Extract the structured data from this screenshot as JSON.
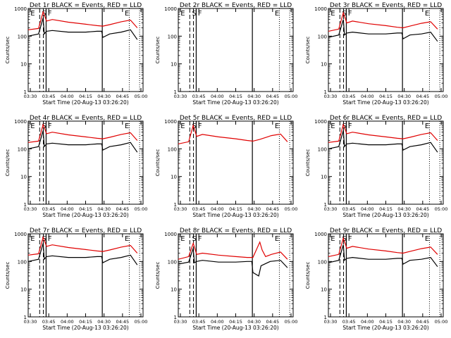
{
  "colors": {
    "events": "#000000",
    "lld": "#e00000",
    "axis": "#000000"
  },
  "common": {
    "ylabel": "Counts/sec",
    "xlabel": "Start Time (20-Aug-13 03:26:20)",
    "xticks": [
      "03:30",
      "03:45",
      "04:00",
      "04:15",
      "04:30",
      "04:45",
      "05:00"
    ],
    "yticks": [
      "1",
      "10",
      "100",
      "1000"
    ]
  },
  "chart_data": [
    {
      "type": "line",
      "title": "Det 1r BLACK = Events, RED = LLD",
      "letters": [
        "E",
        "S",
        "F",
        "E"
      ],
      "has_data": true,
      "variant": "normal",
      "xlim": [
        0,
        100
      ],
      "ylim": [
        1,
        1000
      ],
      "yscale": "log",
      "series": [
        {
          "name": "Events",
          "x": [
            0,
            9,
            13,
            14,
            16,
            21,
            35,
            50,
            60,
            64,
            65,
            71,
            81,
            89,
            95
          ],
          "y": [
            100,
            120,
            450,
            120,
            150,
            160,
            140,
            140,
            150,
            150,
            90,
            120,
            140,
            170,
            75
          ]
        },
        {
          "name": "LLD",
          "x": [
            0,
            9,
            13,
            16,
            21,
            35,
            50,
            60,
            65,
            71,
            81,
            89,
            95
          ],
          "y": [
            170,
            190,
            750,
            350,
            400,
            320,
            270,
            240,
            230,
            260,
            330,
            380,
            200
          ]
        }
      ]
    },
    {
      "type": "line",
      "title": "Det 2r BLACK = Events, RED = LLD",
      "letters": [
        "E",
        "S",
        "F",
        "E"
      ],
      "has_data": false,
      "variant": "empty",
      "xlim": [
        0,
        100
      ],
      "ylim": [
        1,
        1000
      ],
      "yscale": "log",
      "series": []
    },
    {
      "type": "line",
      "title": "Det 3r BLACK = Events, RED = LLD",
      "letters": [
        "E",
        "S",
        "F",
        "E"
      ],
      "has_data": true,
      "variant": "normal",
      "xlim": [
        0,
        100
      ],
      "ylim": [
        1,
        1000
      ],
      "yscale": "log",
      "series": [
        {
          "name": "Events",
          "x": [
            0,
            9,
            13,
            14,
            16,
            21,
            35,
            50,
            60,
            64,
            65,
            71,
            81,
            89,
            95
          ],
          "y": [
            90,
            110,
            400,
            110,
            130,
            140,
            120,
            120,
            130,
            130,
            80,
            110,
            120,
            140,
            65
          ]
        },
        {
          "name": "LLD",
          "x": [
            0,
            9,
            13,
            16,
            21,
            35,
            50,
            60,
            65,
            71,
            81,
            89,
            95
          ],
          "y": [
            150,
            180,
            700,
            300,
            350,
            280,
            240,
            210,
            200,
            230,
            290,
            330,
            180
          ]
        }
      ]
    },
    {
      "type": "line",
      "title": "Det 4r BLACK = Events, RED = LLD",
      "letters": [
        "E",
        "S",
        "F",
        "E"
      ],
      "has_data": true,
      "variant": "normal",
      "xlim": [
        0,
        100
      ],
      "ylim": [
        1,
        1000
      ],
      "yscale": "log",
      "series": [
        {
          "name": "Events",
          "x": [
            0,
            9,
            13,
            14,
            16,
            21,
            35,
            50,
            60,
            64,
            65,
            71,
            81,
            89,
            95
          ],
          "y": [
            100,
            120,
            450,
            120,
            150,
            160,
            140,
            140,
            150,
            150,
            90,
            120,
            140,
            170,
            75
          ]
        },
        {
          "name": "LLD",
          "x": [
            0,
            9,
            13,
            16,
            21,
            35,
            50,
            60,
            65,
            71,
            81,
            89,
            95
          ],
          "y": [
            170,
            190,
            750,
            350,
            400,
            320,
            270,
            240,
            230,
            260,
            330,
            380,
            200
          ]
        }
      ]
    },
    {
      "type": "line",
      "title": "Det 5r BLACK = Events, RED = LLD",
      "letters": [
        "E",
        "S",
        "F",
        "E"
      ],
      "has_data": true,
      "variant": "red-only",
      "xlim": [
        0,
        100
      ],
      "ylim": [
        1,
        1000
      ],
      "yscale": "log",
      "series": [
        {
          "name": "LLD",
          "x": [
            0,
            9,
            13,
            16,
            21,
            35,
            50,
            60,
            65,
            71,
            81,
            89,
            95
          ],
          "y": [
            150,
            180,
            700,
            280,
            330,
            270,
            230,
            200,
            190,
            220,
            300,
            340,
            180
          ]
        }
      ]
    },
    {
      "type": "line",
      "title": "Det 6r BLACK = Events, RED = LLD",
      "letters": [
        "E",
        "S",
        "F",
        "E"
      ],
      "has_data": true,
      "variant": "normal",
      "xlim": [
        0,
        100
      ],
      "ylim": [
        1,
        1000
      ],
      "yscale": "log",
      "series": [
        {
          "name": "Events",
          "x": [
            0,
            9,
            13,
            14,
            16,
            21,
            35,
            50,
            60,
            64,
            65,
            71,
            81,
            89,
            95
          ],
          "y": [
            100,
            120,
            450,
            120,
            150,
            160,
            140,
            140,
            150,
            150,
            90,
            120,
            140,
            170,
            75
          ]
        },
        {
          "name": "LLD",
          "x": [
            0,
            9,
            13,
            16,
            21,
            35,
            50,
            60,
            65,
            71,
            81,
            89,
            95
          ],
          "y": [
            170,
            190,
            750,
            350,
            400,
            320,
            270,
            240,
            230,
            260,
            330,
            380,
            200
          ]
        }
      ]
    },
    {
      "type": "line",
      "title": "Det 7r BLACK = Events, RED = LLD",
      "letters": [
        "E",
        "S",
        "F",
        "E"
      ],
      "has_data": true,
      "variant": "normal",
      "xlim": [
        0,
        100
      ],
      "ylim": [
        1,
        1000
      ],
      "yscale": "log",
      "series": [
        {
          "name": "Events",
          "x": [
            0,
            9,
            13,
            14,
            16,
            21,
            35,
            50,
            60,
            64,
            65,
            71,
            81,
            89,
            95
          ],
          "y": [
            100,
            120,
            450,
            120,
            150,
            160,
            140,
            140,
            150,
            150,
            90,
            120,
            140,
            170,
            75
          ]
        },
        {
          "name": "LLD",
          "x": [
            0,
            9,
            13,
            16,
            21,
            35,
            50,
            60,
            65,
            71,
            81,
            89,
            95
          ],
          "y": [
            170,
            190,
            750,
            350,
            400,
            320,
            270,
            240,
            230,
            260,
            330,
            380,
            200
          ]
        }
      ]
    },
    {
      "type": "line",
      "title": "Det 8r BLACK = Events, RED = LLD",
      "letters": [
        "E",
        "S",
        "F",
        "E"
      ],
      "has_data": true,
      "variant": "det8",
      "xlim": [
        0,
        100
      ],
      "ylim": [
        1,
        1000
      ],
      "yscale": "log",
      "series": [
        {
          "name": "Events",
          "x": [
            0,
            9,
            13,
            14,
            16,
            21,
            35,
            50,
            60,
            64,
            65,
            70,
            72,
            80,
            89,
            95
          ],
          "y": [
            80,
            95,
            300,
            90,
            100,
            110,
            95,
            95,
            100,
            100,
            40,
            30,
            70,
            100,
            110,
            60
          ]
        },
        {
          "name": "LLD",
          "x": [
            0,
            9,
            13,
            16,
            21,
            35,
            50,
            60,
            65,
            71,
            73,
            76,
            81,
            89,
            95
          ],
          "y": [
            120,
            150,
            450,
            180,
            200,
            170,
            150,
            140,
            140,
            500,
            260,
            150,
            180,
            220,
            120
          ]
        }
      ]
    },
    {
      "type": "line",
      "title": "Det 9r BLACK = Events, RED = LLD",
      "letters": [
        "E",
        "S",
        "F",
        "E"
      ],
      "has_data": true,
      "variant": "normal",
      "xlim": [
        0,
        100
      ],
      "ylim": [
        1,
        1000
      ],
      "yscale": "log",
      "series": [
        {
          "name": "Events",
          "x": [
            0,
            9,
            13,
            14,
            16,
            21,
            35,
            50,
            60,
            64,
            65,
            71,
            81,
            89,
            95
          ],
          "y": [
            90,
            110,
            400,
            110,
            130,
            140,
            120,
            120,
            130,
            130,
            80,
            110,
            120,
            140,
            65
          ]
        },
        {
          "name": "LLD",
          "x": [
            0,
            9,
            13,
            16,
            21,
            35,
            50,
            60,
            65,
            71,
            81,
            89,
            95
          ],
          "y": [
            150,
            180,
            700,
            300,
            350,
            280,
            240,
            210,
            200,
            230,
            290,
            330,
            180
          ]
        }
      ]
    }
  ]
}
